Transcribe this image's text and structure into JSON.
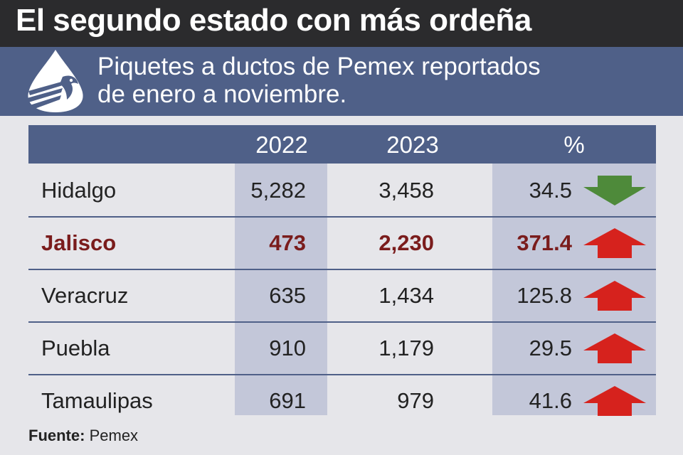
{
  "title": "El segundo estado con más ordeña",
  "subtitle_line1": "Piquetes a ductos de Pemex reportados",
  "subtitle_line2": "de enero a noviembre.",
  "logo_icon": "pemex-eagle-drop-logo",
  "colors": {
    "header_bg": "#4f6088",
    "title_bg": "#2b2b2d",
    "shade": "#c3c7d9",
    "highlight_text": "#7a1c1c",
    "down_arrow": "#4e8a3a",
    "up_arrow": "#d6221d"
  },
  "chart_data": {
    "type": "table",
    "columns": [
      "",
      "2022",
      "2023",
      "%"
    ],
    "rows": [
      {
        "state": "Hidalgo",
        "y2022": "5,282",
        "y2023": "3,458",
        "pct": "34.5",
        "trend": "down",
        "highlight": false
      },
      {
        "state": "Jalisco",
        "y2022": "473",
        "y2023": "2,230",
        "pct": "371.4",
        "trend": "up",
        "highlight": true
      },
      {
        "state": "Veracruz",
        "y2022": "635",
        "y2023": "1,434",
        "pct": "125.8",
        "trend": "up",
        "highlight": false
      },
      {
        "state": "Puebla",
        "y2022": "910",
        "y2023": "1,179",
        "pct": "29.5",
        "trend": "up",
        "highlight": false
      },
      {
        "state": "Tamaulipas",
        "y2022": "691",
        "y2023": "979",
        "pct": "41.6",
        "trend": "up",
        "highlight": false
      }
    ]
  },
  "source_label": "Fuente:",
  "source_value": "Pemex"
}
